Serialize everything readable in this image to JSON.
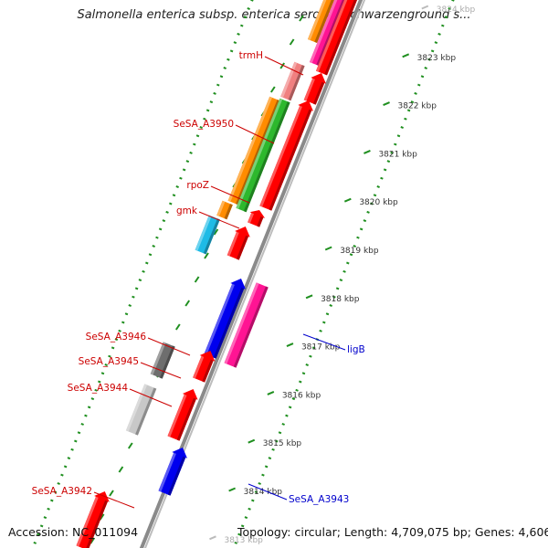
{
  "title": "Salmonella enterica subsp. enterica serovar Schwarzenground s...",
  "footer": {
    "accession": "Accession: NC_011094",
    "topology": "Topology: circular; Length: 4,709,075 bp; Genes: 4,606"
  },
  "colors": {
    "backbone": "#8a8a8a",
    "dots": "#1f8f1f",
    "label_forward": "#cc0000",
    "label_reverse": "#0000cc"
  },
  "ticks": [
    {
      "label": "3824 kbp",
      "faded": true
    },
    {
      "label": "3823 kbp"
    },
    {
      "label": "3822 kbp"
    },
    {
      "label": "3821 kbp"
    },
    {
      "label": "3820 kbp"
    },
    {
      "label": "3819 kbp"
    },
    {
      "label": "3818 kbp"
    },
    {
      "label": "3817 kbp"
    },
    {
      "label": "3816 kbp"
    },
    {
      "label": "3815 kbp"
    },
    {
      "label": "3814 kbp"
    },
    {
      "label": "3813 kbp",
      "faded": true
    }
  ],
  "gene_labels": [
    {
      "text": "trmH",
      "strand": "forward"
    },
    {
      "text": "SeSA_A3950",
      "strand": "forward"
    },
    {
      "text": "rpoZ",
      "strand": "forward"
    },
    {
      "text": "gmk",
      "strand": "forward"
    },
    {
      "text": "SeSA_A3946",
      "strand": "forward"
    },
    {
      "text": "SeSA_A3945",
      "strand": "forward"
    },
    {
      "text": "SeSA_A3944",
      "strand": "forward"
    },
    {
      "text": "SeSA_A3942",
      "strand": "forward"
    },
    {
      "text": "ligB",
      "strand": "reverse"
    },
    {
      "text": "SeSA_A3943",
      "strand": "reverse"
    }
  ],
  "features": [
    {
      "name": "top-orange",
      "color": "#ff8c00"
    },
    {
      "name": "top-magenta",
      "color": "#ff1493"
    },
    {
      "name": "top-red",
      "color": "#ff0000"
    },
    {
      "name": "trmH-cds",
      "color": "#f08080"
    },
    {
      "name": "trmH-red",
      "color": "#ff0000"
    },
    {
      "name": "orange-long",
      "color": "#ff8c00"
    },
    {
      "name": "green-long",
      "color": "#2db82d"
    },
    {
      "name": "red-long",
      "color": "#ff0000"
    },
    {
      "name": "gmk-orange",
      "color": "#ff8c00"
    },
    {
      "name": "gmk-red",
      "color": "#ff0000"
    },
    {
      "name": "cyan-cds",
      "color": "#1ebbe6"
    },
    {
      "name": "red-small",
      "color": "#ff0000"
    },
    {
      "name": "ligB-blue",
      "color": "#0000ee"
    },
    {
      "name": "ligB-pink",
      "color": "#ff1493"
    },
    {
      "name": "SeSA_A3946-gray",
      "color": "#6e6e6e"
    },
    {
      "name": "SeSA_A3946-red",
      "color": "#ff0000"
    },
    {
      "name": "SeSA_A3944-lightgray",
      "color": "#c8c8c8"
    },
    {
      "name": "SeSA_A3944-red",
      "color": "#ff0000"
    },
    {
      "name": "SeSA_A3943-blue",
      "color": "#0000ee"
    },
    {
      "name": "SeSA_A3942-red",
      "color": "#ff0000"
    }
  ]
}
